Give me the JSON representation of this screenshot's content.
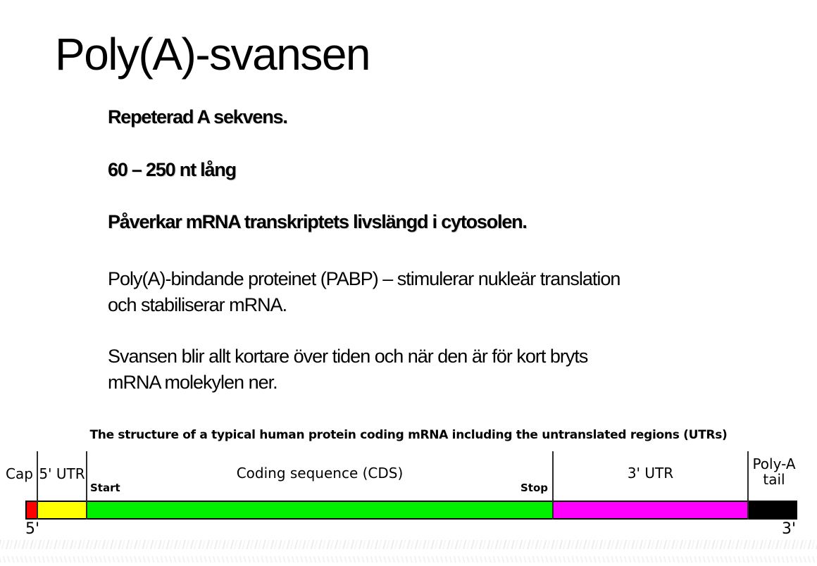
{
  "slide": {
    "title": "Poly(A)-svansen",
    "paragraphs": [
      {
        "text": "Repeterad A sekvens.",
        "bold": true
      },
      {
        "text": "60 – 250 nt lång",
        "bold": true
      },
      {
        "text": "Påverkar mRNA transkriptets livslängd i cytosolen.",
        "bold": true
      },
      {
        "text": "Poly(A)-bindande proteinet (PABP) – stimulerar nukleär translation\noch stabiliserar mRNA.",
        "bold": false
      },
      {
        "text": "Svansen blir allt kortare över tiden och när den är för kort bryts\nmRNA molekylen ner.",
        "bold": false
      }
    ]
  },
  "diagram": {
    "title": "The structure of a typical human protein coding mRNA including the untranslated regions (UTRs)",
    "labels": {
      "cap": "Cap",
      "utr5": "5' UTR",
      "start": "Start",
      "cds": "Coding sequence (CDS)",
      "stop": "Stop",
      "utr3": "3' UTR",
      "polya": "Poly-A\ntail",
      "five_prime": "5'",
      "three_prime": "3'"
    },
    "segments": [
      {
        "name": "Cap",
        "color": "#ff0000"
      },
      {
        "name": "5' UTR",
        "color": "#ffff00"
      },
      {
        "name": "Coding sequence (CDS)",
        "color": "#00f000"
      },
      {
        "name": "3' UTR",
        "color": "#ff00ff"
      },
      {
        "name": "Poly-A tail",
        "color": "#000000"
      }
    ]
  }
}
